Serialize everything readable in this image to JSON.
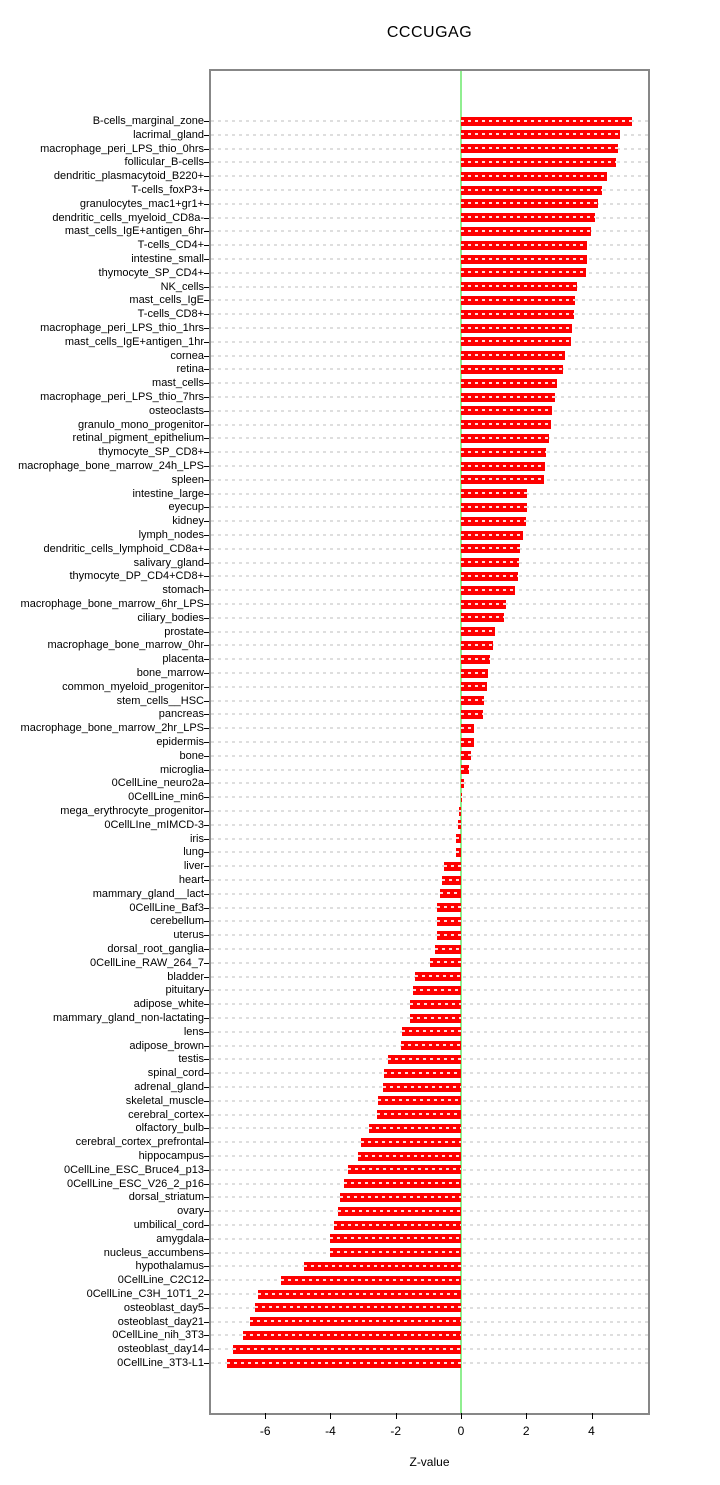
{
  "chart_data": {
    "type": "bar",
    "orientation": "horizontal",
    "title": "CCCUGAG",
    "xlabel": "Z-value",
    "x_ticks": [
      -6,
      -4,
      -2,
      0,
      2,
      4
    ],
    "xlim": [
      -7.66,
      5.74
    ],
    "grid": "dotted",
    "zero_line": 0,
    "colors": {
      "bar": "#fe0000",
      "zero_line": "#90ee90",
      "grid": "#dedede",
      "frame": "#878787"
    },
    "categories": [
      "B-cells_marginal_zone",
      "lacrimal_gland",
      "macrophage_peri_LPS_thio_0hrs",
      "follicular_B-cells",
      "dendritic_plasmacytoid_B220+",
      "T-cells_foxP3+",
      "granulocytes_mac1+gr1+",
      "dendritic_cells_myeloid_CD8a-",
      "mast_cells_IgE+antigen_6hr",
      "T-cells_CD4+",
      "intestine_small",
      "thymocyte_SP_CD4+",
      "NK_cells",
      "mast_cells_IgE",
      "T-cells_CD8+",
      "macrophage_peri_LPS_thio_1hrs",
      "mast_cells_IgE+antigen_1hr",
      "cornea",
      "retina",
      "mast_cells",
      "macrophage_peri_LPS_thio_7hrs",
      "osteoclasts",
      "granulo_mono_progenitor",
      "retinal_pigment_epithelium",
      "thymocyte_SP_CD8+",
      "macrophage_bone_marrow_24h_LPS",
      "spleen",
      "intestine_large",
      "eyecup",
      "kidney",
      "lymph_nodes",
      "dendritic_cells_lymphoid_CD8a+",
      "salivary_gland",
      "thymocyte_DP_CD4+CD8+",
      "stomach",
      "macrophage_bone_marrow_6hr_LPS",
      "ciliary_bodies",
      "prostate",
      "macrophage_bone_marrow_0hr",
      "placenta",
      "bone_marrow",
      "common_myeloid_progenitor",
      "stem_cells__HSC",
      "pancreas",
      "macrophage_bone_marrow_2hr_LPS",
      "epidermis",
      "bone",
      "microglia",
      "0CellLine_neuro2a",
      "0CellLine_min6",
      "mega_erythrocyte_progenitor",
      "0CellLIne_mIMCD-3",
      "iris",
      "lung",
      "liver",
      "heart",
      "mammary_gland__lact",
      "0CellLine_Baf3",
      "cerebellum",
      "uterus",
      "dorsal_root_ganglia",
      "0CellLine_RAW_264_7",
      "bladder",
      "pituitary",
      "adipose_white",
      "mammary_gland_non-lactating",
      "lens",
      "adipose_brown",
      "testis",
      "spinal_cord",
      "adrenal_gland",
      "skeletal_muscle",
      "cerebral_cortex",
      "olfactory_bulb",
      "cerebral_cortex_prefrontal",
      "hippocampus",
      "0CellLine_ESC_Bruce4_p13",
      "0CellLine_ESC_V26_2_p16",
      "dorsal_striatum",
      "ovary",
      "umbilical_cord",
      "amygdala",
      "nucleus_accumbens",
      "hypothalamus",
      "0CellLine_C2C12",
      "0CellLine_C3H_10T1_2",
      "osteoblast_day5",
      "osteoblast_day21",
      "0CellLine_nih_3T3",
      "osteoblast_day14",
      "0CellLine_3T3-L1"
    ],
    "values": [
      5.24,
      4.86,
      4.8,
      4.74,
      4.46,
      4.33,
      4.2,
      4.1,
      3.98,
      3.87,
      3.85,
      3.83,
      3.54,
      3.5,
      3.47,
      3.41,
      3.36,
      3.19,
      3.12,
      2.95,
      2.88,
      2.79,
      2.76,
      2.7,
      2.59,
      2.57,
      2.54,
      2.03,
      2.02,
      1.98,
      1.89,
      1.82,
      1.78,
      1.74,
      1.64,
      1.37,
      1.31,
      1.04,
      0.97,
      0.88,
      0.84,
      0.81,
      0.71,
      0.66,
      0.41,
      0.39,
      0.3,
      0.23,
      0.09,
      0.03,
      -0.05,
      -0.08,
      -0.14,
      -0.16,
      -0.52,
      -0.59,
      -0.64,
      -0.73,
      -0.74,
      -0.75,
      -0.8,
      -0.95,
      -1.41,
      -1.46,
      -1.56,
      -1.57,
      -1.82,
      -1.84,
      -2.25,
      -2.35,
      -2.38,
      -2.55,
      -2.58,
      -2.81,
      -3.06,
      -3.16,
      -3.45,
      -3.58,
      -3.71,
      -3.76,
      -3.88,
      -4.01,
      -4.03,
      -4.81,
      -5.51,
      -6.21,
      -6.31,
      -6.46,
      -6.67,
      -7.0,
      -7.16
    ]
  }
}
